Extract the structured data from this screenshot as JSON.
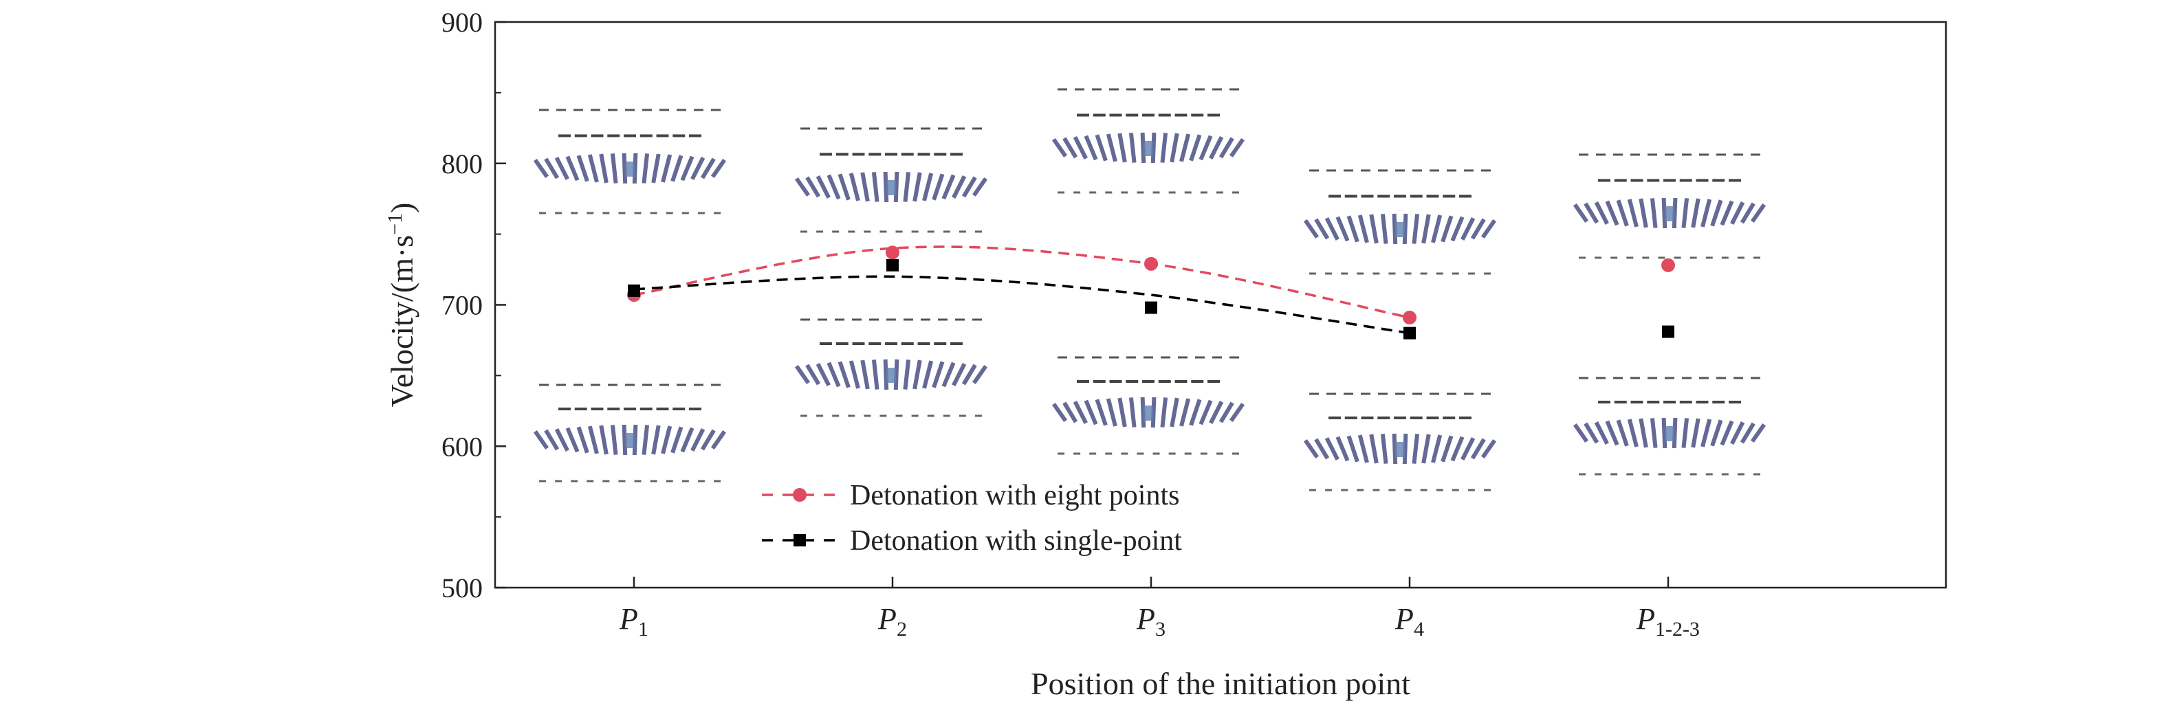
{
  "chart_data": {
    "type": "scatter",
    "title": "",
    "xlabel": "Position of the initiation point",
    "ylabel": "Velocity/(m·s",
    "ylabel_sup": "−1",
    "ylabel_close": ")",
    "categories": [
      {
        "base": "P",
        "sub": "1"
      },
      {
        "base": "P",
        "sub": "2"
      },
      {
        "base": "P",
        "sub": "3"
      },
      {
        "base": "P",
        "sub": "4"
      },
      {
        "base": "P",
        "sub": "1-2-3"
      }
    ],
    "ylim": [
      500,
      900
    ],
    "yticks": [
      500,
      600,
      700,
      800,
      900
    ],
    "grid": false,
    "legend_position": "bottom-center",
    "series": [
      {
        "name": "Detonation with eight points",
        "marker": "circle",
        "color": "#e04a5f",
        "values": [
          707,
          737,
          729,
          691,
          728
        ],
        "fit": [
          707,
          740,
          729,
          691
        ]
      },
      {
        "name": "Detonation with single-point",
        "marker": "square",
        "color": "#000000",
        "values": [
          710,
          728,
          698,
          680,
          681
        ],
        "fit": [
          711,
          720,
          707,
          680
        ]
      }
    ],
    "inset_images": "fragment distribution illustrations above and below each position"
  }
}
